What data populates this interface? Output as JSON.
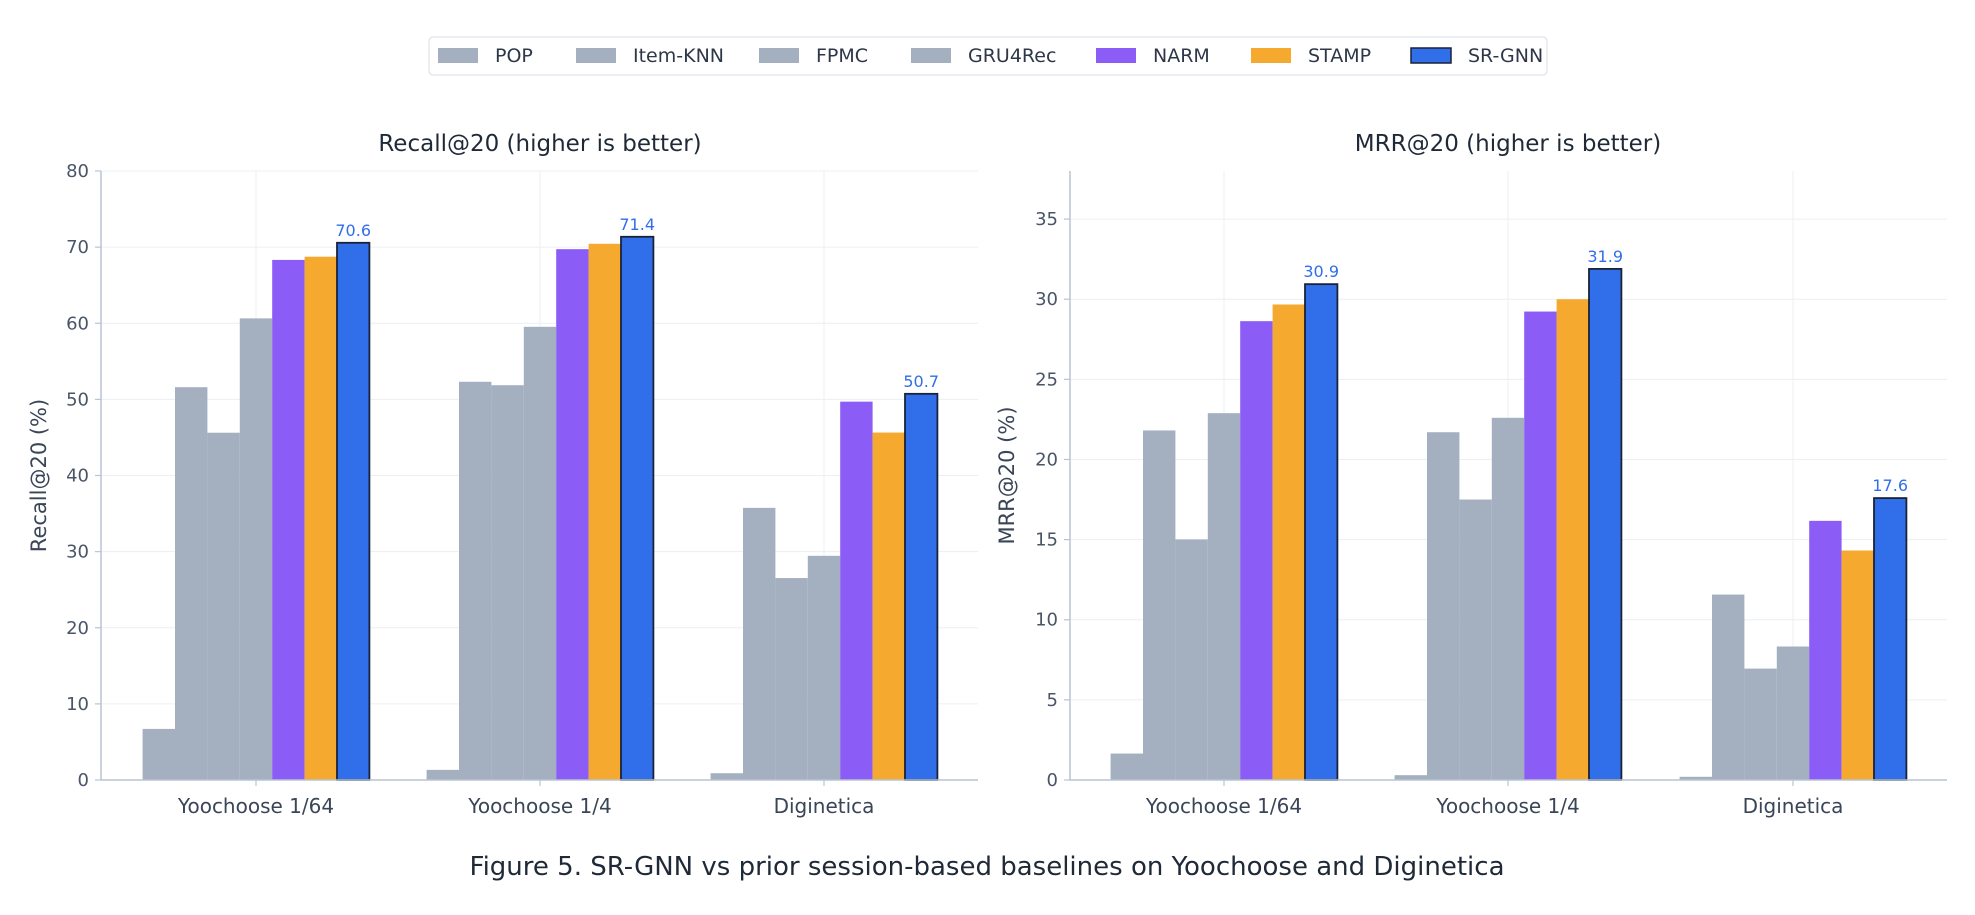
{
  "legend": [
    {
      "name": "POP",
      "color": "#a4afc0"
    },
    {
      "name": "Item-KNN",
      "color": "#a4afc0"
    },
    {
      "name": "FPMC",
      "color": "#a4afc0"
    },
    {
      "name": "GRU4Rec",
      "color": "#a4afc0"
    },
    {
      "name": "NARM",
      "color": "#8b5cf6"
    },
    {
      "name": "STAMP",
      "color": "#f6a92f"
    },
    {
      "name": "SR-GNN",
      "color": "#316ee9"
    }
  ],
  "highlight": {
    "series": "SR-GNN",
    "label_color": "#316ee9",
    "edge_color": "#1a2238"
  },
  "caption": "Figure 5. SR-GNN vs prior session-based baselines on Yoochoose and Diginetica",
  "chart_data": [
    {
      "type": "bar",
      "title": "Recall@20  (higher is better)",
      "ylabel": "Recall@20 (%)",
      "ylim": [
        0,
        80
      ],
      "yticks": [
        0,
        10,
        20,
        30,
        40,
        50,
        60,
        70,
        80
      ],
      "grid": true,
      "categories": [
        "Yoochoose 1/64",
        "Yoochoose 1/4",
        "Diginetica"
      ],
      "series": [
        {
          "name": "POP",
          "values": [
            6.71,
            1.33,
            0.89
          ]
        },
        {
          "name": "Item-KNN",
          "values": [
            51.6,
            52.31,
            35.75
          ]
        },
        {
          "name": "FPMC",
          "values": [
            45.62,
            51.86,
            26.53
          ]
        },
        {
          "name": "GRU4Rec",
          "values": [
            60.64,
            59.53,
            29.45
          ]
        },
        {
          "name": "NARM",
          "values": [
            68.32,
            69.73,
            49.7
          ]
        },
        {
          "name": "STAMP",
          "values": [
            68.74,
            70.44,
            45.64
          ]
        },
        {
          "name": "SR-GNN",
          "values": [
            70.57,
            71.36,
            50.73
          ]
        }
      ],
      "data_labels": [
        "70.6",
        "71.4",
        "50.7"
      ]
    },
    {
      "type": "bar",
      "title": "MRR@20  (higher is better)",
      "ylabel": "MRR@20 (%)",
      "ylim": [
        0,
        38
      ],
      "yticks": [
        0,
        5,
        10,
        15,
        20,
        25,
        30,
        35
      ],
      "grid": true,
      "categories": [
        "Yoochoose 1/64",
        "Yoochoose 1/4",
        "Diginetica"
      ],
      "series": [
        {
          "name": "POP",
          "values": [
            1.65,
            0.3,
            0.2
          ]
        },
        {
          "name": "Item-KNN",
          "values": [
            21.81,
            21.7,
            11.57
          ]
        },
        {
          "name": "FPMC",
          "values": [
            15.01,
            17.5,
            6.95
          ]
        },
        {
          "name": "GRU4Rec",
          "values": [
            22.89,
            22.6,
            8.33
          ]
        },
        {
          "name": "NARM",
          "values": [
            28.63,
            29.23,
            16.17
          ]
        },
        {
          "name": "STAMP",
          "values": [
            29.67,
            30.0,
            14.32
          ]
        },
        {
          "name": "SR-GNN",
          "values": [
            30.94,
            31.89,
            17.59
          ]
        }
      ],
      "data_labels": [
        "30.9",
        "31.9",
        "17.6"
      ]
    }
  ]
}
